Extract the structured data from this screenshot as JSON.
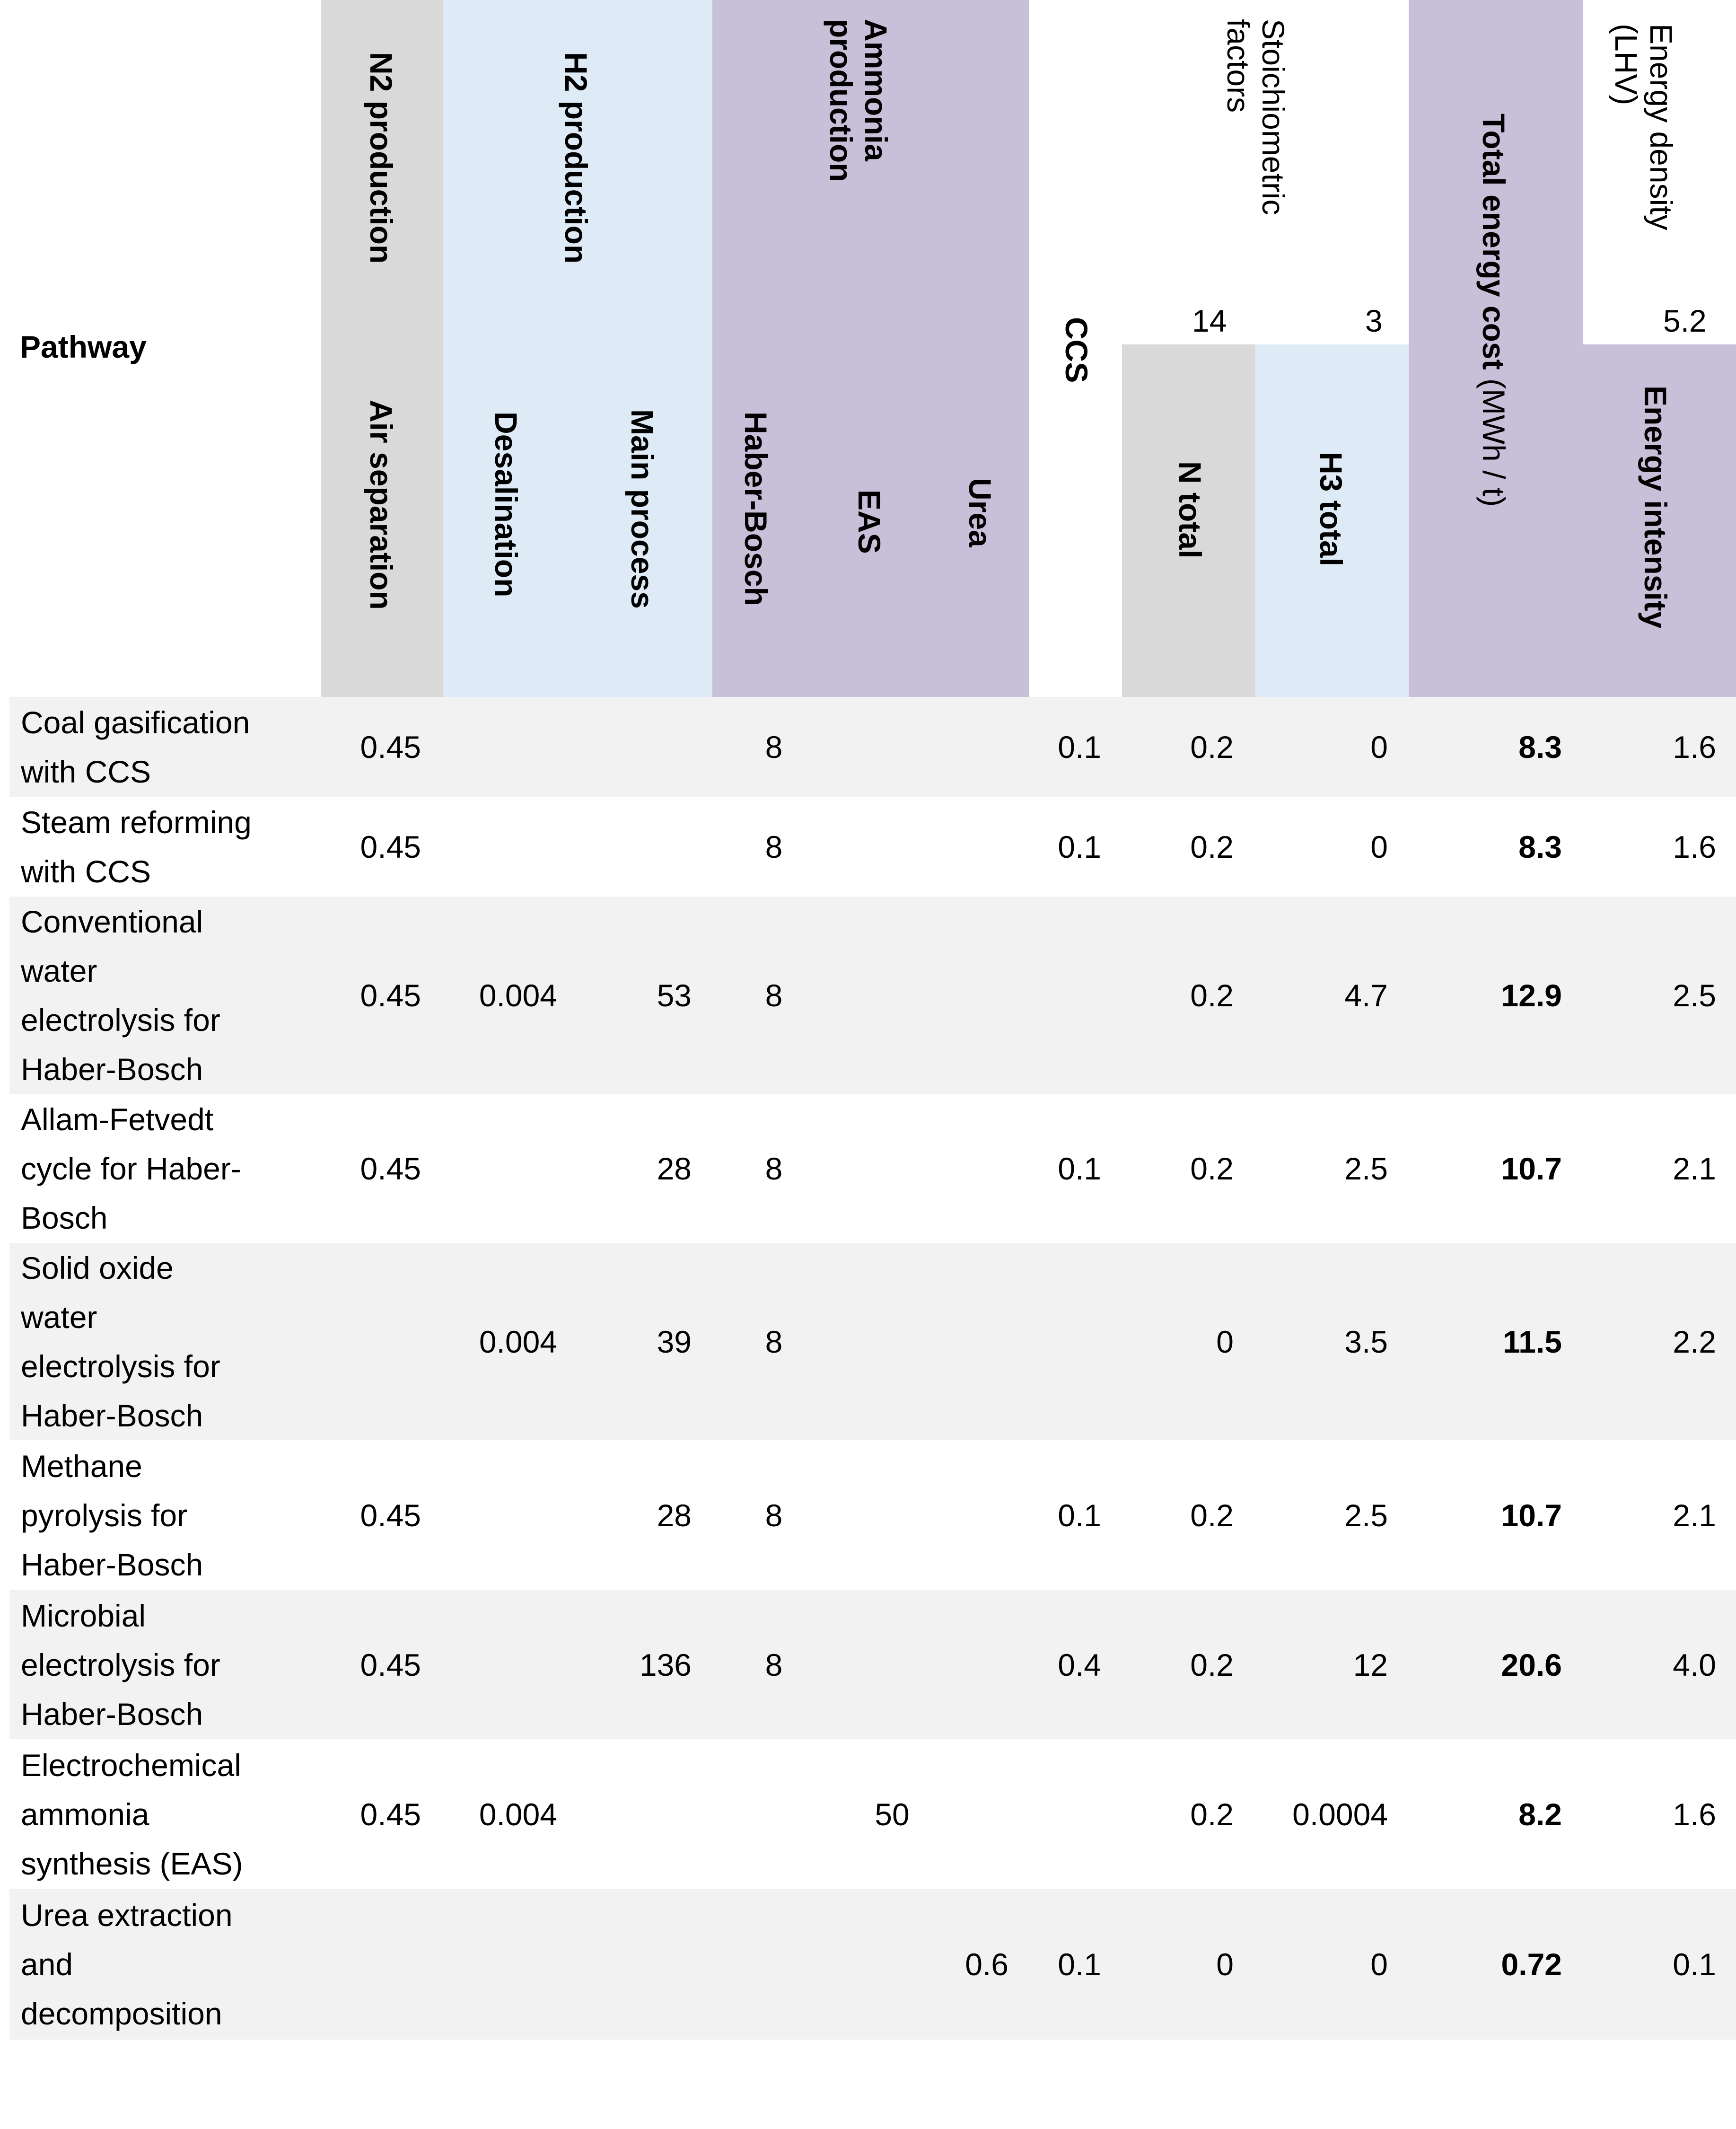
{
  "header": {
    "pathway": "Pathway",
    "groups": {
      "n2": "N2 production",
      "h2": "H2 production",
      "ammonia": [
        "Ammonia",
        "production"
      ],
      "ccs": "CCS",
      "stoich": [
        "Stoichiometric",
        "factors"
      ],
      "total_bold": "Total energy cost",
      "total_unit": " (MWh / t)",
      "density": [
        "Energy density",
        "(LHV)"
      ]
    },
    "stoich_n": "14",
    "stoich_h": "3",
    "density_value": "5.2",
    "sub": {
      "air_separation": "Air separation",
      "desalination": "Desalination",
      "main_process": "Main process",
      "haber_bosch": "Haber-Bosch",
      "eas": "EAS",
      "urea": "Urea",
      "n_total": "N total",
      "h3_total": "H3 total",
      "energy_intensity": "Energy intensity"
    }
  },
  "rows": [
    {
      "pathway": [
        "Coal gasification",
        "with CCS"
      ],
      "air": "0.45",
      "desal": "",
      "main": "",
      "hb": "8",
      "eas": "",
      "urea": "",
      "ccs": "0.1",
      "n": "0.2",
      "h3": "0",
      "total": "8.3",
      "intensity": "1.6"
    },
    {
      "pathway": [
        "Steam reforming",
        "with CCS"
      ],
      "air": "0.45",
      "desal": "",
      "main": "",
      "hb": "8",
      "eas": "",
      "urea": "",
      "ccs": "0.1",
      "n": "0.2",
      "h3": "0",
      "total": "8.3",
      "intensity": "1.6"
    },
    {
      "pathway": [
        "Conventional",
        "water",
        "electrolysis for",
        "Haber-Bosch"
      ],
      "air": "0.45",
      "desal": "0.004",
      "main": "53",
      "hb": "8",
      "eas": "",
      "urea": "",
      "ccs": "",
      "n": "0.2",
      "h3": "4.7",
      "total": "12.9",
      "intensity": "2.5"
    },
    {
      "pathway": [
        "Allam-Fetvedt",
        "cycle for Haber-",
        "Bosch"
      ],
      "air": "0.45",
      "desal": "",
      "main": "28",
      "hb": "8",
      "eas": "",
      "urea": "",
      "ccs": "0.1",
      "n": "0.2",
      "h3": "2.5",
      "total": "10.7",
      "intensity": "2.1"
    },
    {
      "pathway": [
        "Solid oxide",
        "water",
        "electrolysis for",
        "Haber-Bosch"
      ],
      "air": "",
      "desal": "0.004",
      "main": "39",
      "hb": "8",
      "eas": "",
      "urea": "",
      "ccs": "",
      "n": "0",
      "h3": "3.5",
      "total": "11.5",
      "intensity": "2.2"
    },
    {
      "pathway": [
        "Methane",
        "pyrolysis for",
        "Haber-Bosch"
      ],
      "air": "0.45",
      "desal": "",
      "main": "28",
      "hb": "8",
      "eas": "",
      "urea": "",
      "ccs": "0.1",
      "n": "0.2",
      "h3": "2.5",
      "total": "10.7",
      "intensity": "2.1"
    },
    {
      "pathway": [
        "Microbial",
        "electrolysis for",
        "Haber-Bosch"
      ],
      "air": "0.45",
      "desal": "",
      "main": "136",
      "hb": "8",
      "eas": "",
      "urea": "",
      "ccs": "0.4",
      "n": "0.2",
      "h3": "12",
      "total": "20.6",
      "intensity": "4.0"
    },
    {
      "pathway": [
        "Electrochemical",
        "ammonia",
        "synthesis (EAS)"
      ],
      "air": "0.45",
      "desal": "0.004",
      "main": "",
      "hb": "",
      "eas": "50",
      "urea": "",
      "ccs": "",
      "n": "0.2",
      "h3": "0.0004",
      "total": "8.2",
      "intensity": "1.6"
    },
    {
      "pathway": [
        "Urea extraction",
        "and",
        "decomposition"
      ],
      "air": "",
      "desal": "",
      "main": "",
      "hb": "",
      "eas": "",
      "urea": "0.6",
      "ccs": "0.1",
      "n": "0",
      "h3": "0",
      "total": "0.72",
      "intensity": "0.1"
    }
  ]
}
